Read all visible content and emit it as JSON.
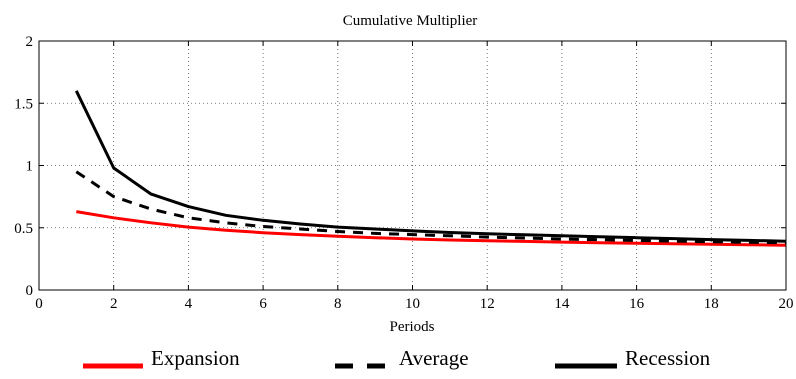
{
  "chart_data": {
    "type": "line",
    "title": "Cumulative Multiplier",
    "xlabel": "Periods",
    "ylabel": "",
    "xlim": [
      0,
      20
    ],
    "ylim": [
      0,
      2
    ],
    "xticks": [
      "0",
      "2",
      "4",
      "6",
      "8",
      "10",
      "12",
      "14",
      "16",
      "18",
      "20"
    ],
    "yticks": [
      "0",
      "0.5",
      "1",
      "1.5",
      "2"
    ],
    "grid": true,
    "legend_position": "bottom",
    "x": [
      1,
      2,
      3,
      4,
      5,
      6,
      7,
      8,
      9,
      10,
      11,
      12,
      13,
      14,
      15,
      16,
      17,
      18,
      19,
      20
    ],
    "series": [
      {
        "name": "Expansion",
        "color": "#ff0000",
        "style": "solid",
        "values": [
          0.63,
          0.58,
          0.54,
          0.505,
          0.48,
          0.46,
          0.445,
          0.432,
          0.42,
          0.41,
          0.402,
          0.395,
          0.39,
          0.385,
          0.38,
          0.376,
          0.372,
          0.368,
          0.364,
          0.36
        ]
      },
      {
        "name": "Average",
        "color": "#000000",
        "style": "dashed",
        "values": [
          0.95,
          0.75,
          0.65,
          0.58,
          0.54,
          0.51,
          0.49,
          0.47,
          0.455,
          0.445,
          0.435,
          0.425,
          0.418,
          0.41,
          0.404,
          0.398,
          0.393,
          0.388,
          0.384,
          0.38
        ]
      },
      {
        "name": "Recession",
        "color": "#000000",
        "style": "solid",
        "values": [
          1.6,
          0.98,
          0.77,
          0.67,
          0.6,
          0.56,
          0.53,
          0.505,
          0.49,
          0.475,
          0.462,
          0.452,
          0.443,
          0.435,
          0.427,
          0.42,
          0.413,
          0.405,
          0.398,
          0.392
        ]
      }
    ]
  }
}
